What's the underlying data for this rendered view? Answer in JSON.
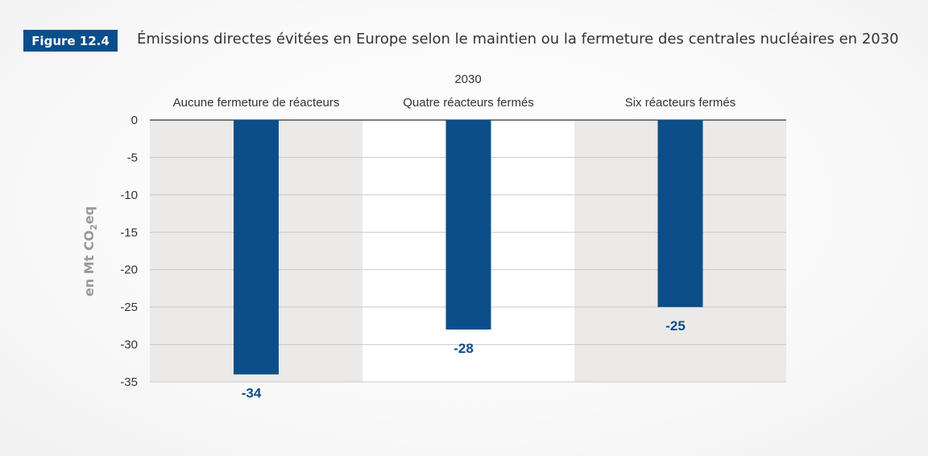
{
  "figure": {
    "badge": "Figure 12.4",
    "title": "Émissions directes évitées en Europe selon le maintien ou la fermeture des centrales nucléaires en 2030"
  },
  "colors": {
    "bar": "#0b4e8a",
    "panel_shaded": "#ece9e9",
    "panel_plain": "#ffffff",
    "gridline": "#c9c9c9",
    "zero_line": "#333333",
    "data_label": "#0b4e8a",
    "axis_label": "#999999"
  },
  "chart_data": {
    "type": "bar",
    "group_label": "2030",
    "categories": [
      "Aucune fermeture de réacteurs",
      "Quatre réacteurs fermés",
      "Six réacteurs fermés"
    ],
    "values": [
      -34,
      -28,
      -25
    ],
    "data_labels": [
      "-34",
      "-28",
      "-25"
    ],
    "ylabel": "en Mt CO2eq",
    "ylim": [
      -35,
      0
    ],
    "yticks": [
      0,
      -5,
      -10,
      -15,
      -20,
      -25,
      -30,
      -35
    ],
    "grid": true,
    "legend": "none"
  }
}
